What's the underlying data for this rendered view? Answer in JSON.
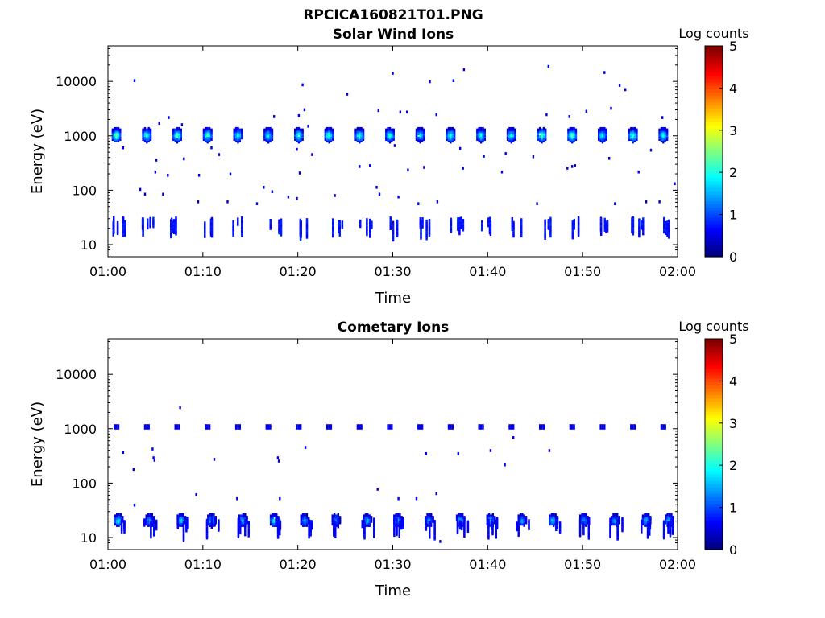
{
  "figure": {
    "title": "RPCICA160821T01.PNG"
  },
  "colorbar_scale": {
    "colormap": "jet",
    "min": 0,
    "max": 5,
    "ticks": [
      "0",
      "1",
      "2",
      "3",
      "4",
      "5"
    ]
  },
  "chart_data": [
    {
      "type": "heatmap",
      "title": "Solar Wind Ions",
      "xlabel": "Time",
      "ylabel": "Energy (eV)",
      "colorbar_label": "Log counts",
      "x_ticks": [
        "01:00",
        "01:10",
        "01:20",
        "01:30",
        "01:40",
        "01:50",
        "02:00"
      ],
      "y_ticks": [
        "10",
        "100",
        "1000",
        "10000"
      ],
      "y_scale": "log",
      "ylim": [
        6,
        45000
      ],
      "xlim_minutes": [
        0,
        60
      ],
      "features": {
        "main_band": {
          "energy_eV": 1100,
          "times_min": [
            0.8,
            4,
            7.2,
            10.4,
            13.6,
            16.8,
            20,
            23.2,
            26.4,
            29.6,
            32.8,
            36,
            39.2,
            42.4,
            45.6,
            48.8,
            52,
            55.2,
            58.4
          ],
          "peak_log_counts": [
            2.6,
            2.3,
            2.5,
            2.4,
            2.1,
            2.0,
            2.3,
            2.4,
            2.4,
            2.3,
            2.0,
            2.3,
            2.2,
            2.2,
            2.6,
            2.6,
            2.1,
            2.4,
            2.2
          ]
        },
        "low_energy_band": {
          "energy_eV": 22,
          "times_min": [
            1,
            4,
            7,
            10.3,
            13.5,
            17.5,
            20.5,
            24,
            27,
            30,
            33,
            36.5,
            39.5,
            43,
            46,
            49,
            52,
            55.5,
            58.5
          ],
          "log_counts": 0.7
        },
        "scattered_points": [
          [
            2.7,
            11000
          ],
          [
            20.4,
            9200
          ],
          [
            29.9,
            15000
          ],
          [
            33.8,
            10500
          ],
          [
            36.3,
            11000
          ],
          [
            37.4,
            17500
          ],
          [
            46.3,
            20000
          ],
          [
            52.2,
            15500
          ],
          [
            53.8,
            9000
          ],
          [
            54.4,
            7500
          ],
          [
            25.1,
            6200
          ],
          [
            20,
            2500
          ],
          [
            21,
            1600
          ],
          [
            20.6,
            3200
          ],
          [
            28.4,
            3100
          ],
          [
            30.7,
            2900
          ],
          [
            31.4,
            2900
          ],
          [
            34.5,
            2600
          ],
          [
            46.1,
            2600
          ],
          [
            48.5,
            2400
          ],
          [
            50.3,
            3000
          ],
          [
            52.9,
            3400
          ],
          [
            58.3,
            2300
          ],
          [
            17.4,
            2400
          ],
          [
            6.3,
            2300
          ],
          [
            5.3,
            1800
          ],
          [
            7.7,
            1700
          ],
          [
            1.5,
            640
          ],
          [
            5,
            380
          ],
          [
            7.9,
            400
          ],
          [
            10.8,
            640
          ],
          [
            11.6,
            480
          ],
          [
            19.8,
            600
          ],
          [
            21.4,
            480
          ],
          [
            30.1,
            700
          ],
          [
            37,
            620
          ],
          [
            39.5,
            450
          ],
          [
            41.8,
            500
          ],
          [
            44.7,
            440
          ],
          [
            49.1,
            300
          ],
          [
            52.7,
            410
          ],
          [
            57.1,
            580
          ],
          [
            4.9,
            230
          ],
          [
            6.2,
            200
          ],
          [
            9.5,
            200
          ],
          [
            12.8,
            210
          ],
          [
            20.1,
            220
          ],
          [
            26.4,
            290
          ],
          [
            27.5,
            300
          ],
          [
            31.5,
            250
          ],
          [
            33.2,
            280
          ],
          [
            37.3,
            270
          ],
          [
            41.4,
            230
          ],
          [
            48.3,
            270
          ],
          [
            48.8,
            290
          ],
          [
            55.8,
            230
          ],
          [
            59.6,
            140
          ],
          [
            3.3,
            110
          ],
          [
            3.8,
            90
          ],
          [
            5.7,
            90
          ],
          [
            9.4,
            65
          ],
          [
            12.5,
            65
          ],
          [
            15.6,
            60
          ],
          [
            16.3,
            120
          ],
          [
            17.2,
            100
          ],
          [
            18.9,
            80
          ],
          [
            19.8,
            75
          ],
          [
            23.8,
            85
          ],
          [
            28.2,
            120
          ],
          [
            28.5,
            90
          ],
          [
            30.5,
            80
          ],
          [
            32.6,
            60
          ],
          [
            34.6,
            65
          ],
          [
            45.1,
            60
          ],
          [
            53.3,
            60
          ],
          [
            56.6,
            65
          ],
          [
            58,
            65
          ]
        ]
      }
    },
    {
      "type": "heatmap",
      "title": "Cometary Ions",
      "xlabel": "Time",
      "ylabel": "Energy (eV)",
      "colorbar_label": "Log counts",
      "x_ticks": [
        "01:00",
        "01:10",
        "01:20",
        "01:30",
        "01:40",
        "01:50",
        "02:00"
      ],
      "y_ticks": [
        "10",
        "100",
        "1000",
        "10000"
      ],
      "y_scale": "log",
      "ylim": [
        6,
        45000
      ],
      "xlim_minutes": [
        0,
        60
      ],
      "features": {
        "high_band": {
          "energy_eV": 1150,
          "times_min": [
            0.8,
            4,
            7.2,
            10.4,
            13.6,
            16.8,
            20,
            23.2,
            26.4,
            29.6,
            32.8,
            36,
            39.2,
            42.4,
            45.6,
            48.8,
            52,
            55.2,
            58.4
          ],
          "log_counts": 0.5
        },
        "low_energy_band": {
          "energy_eV": 22,
          "times_min": [
            1,
            4.3,
            7.6,
            10.8,
            14.1,
            17.4,
            20.6,
            23.9,
            27.2,
            30.4,
            33.7,
            37,
            40.2,
            43.5,
            46.8,
            50,
            53.3,
            56.6,
            59
          ],
          "peak_log_counts": [
            2.1,
            1.5,
            1.9,
            1.8,
            1.7,
            2.0,
            1.5,
            1.4,
            1.7,
            1.8,
            1.6,
            2.0,
            1.8,
            1.6,
            1.9,
            1.7,
            1.6,
            1.8,
            1.9
          ]
        },
        "scattered_points": [
          [
            7.5,
            2600
          ],
          [
            1.5,
            390
          ],
          [
            2.6,
            190
          ],
          [
            4.6,
            450
          ],
          [
            4.7,
            310
          ],
          [
            4.8,
            280
          ],
          [
            11.1,
            290
          ],
          [
            17.8,
            310
          ],
          [
            17.9,
            270
          ],
          [
            20.7,
            480
          ],
          [
            33.4,
            370
          ],
          [
            36.8,
            370
          ],
          [
            40.2,
            420
          ],
          [
            41.7,
            230
          ],
          [
            42.6,
            730
          ],
          [
            46.4,
            420
          ],
          [
            9.2,
            65
          ],
          [
            28.3,
            82
          ],
          [
            30.5,
            55
          ],
          [
            32.4,
            55
          ],
          [
            34.5,
            68
          ],
          [
            13.5,
            55
          ],
          [
            18,
            55
          ],
          [
            2.7,
            42
          ],
          [
            34.9,
            9
          ]
        ]
      }
    }
  ]
}
